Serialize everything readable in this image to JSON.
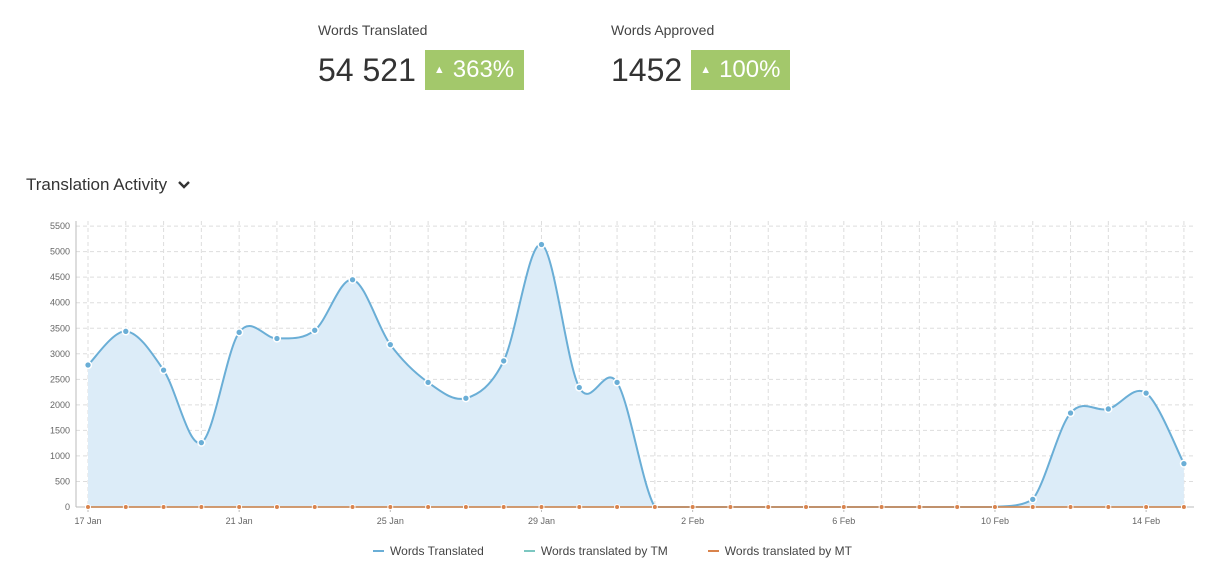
{
  "stats": [
    {
      "label": "Words Translated",
      "value": "54 521",
      "change": "363%"
    },
    {
      "label": "Words Approved",
      "value": "1452",
      "change": "100%"
    }
  ],
  "section": {
    "title": "Translation Activity",
    "icon": "chevron-down-icon"
  },
  "colors": {
    "translated": "#6aaed6",
    "tm": "#7cc7c1",
    "mt": "#d9834c",
    "badge": "#a3c86b",
    "area": "#dcecf8"
  },
  "chart_data": {
    "type": "area",
    "x_tick_labels": [
      "17 Jan",
      "21 Jan",
      "25 Jan",
      "29 Jan",
      "2 Feb",
      "6 Feb",
      "10 Feb",
      "14 Feb"
    ],
    "y_ticks": [
      0,
      500,
      1000,
      1500,
      2000,
      2500,
      3000,
      3500,
      4000,
      4500,
      5000,
      5500
    ],
    "ylim": [
      0,
      5600
    ],
    "grid": true,
    "legend_position": "bottom",
    "x": [
      "17 Jan",
      "18 Jan",
      "19 Jan",
      "20 Jan",
      "21 Jan",
      "22 Jan",
      "23 Jan",
      "24 Jan",
      "25 Jan",
      "26 Jan",
      "27 Jan",
      "28 Jan",
      "29 Jan",
      "30 Jan",
      "31 Jan",
      "1 Feb",
      "2 Feb",
      "3 Feb",
      "4 Feb",
      "5 Feb",
      "6 Feb",
      "7 Feb",
      "8 Feb",
      "9 Feb",
      "10 Feb",
      "11 Feb",
      "12 Feb",
      "13 Feb",
      "14 Feb",
      "15 Feb"
    ],
    "series": [
      {
        "name": "Words Translated",
        "values": [
          2780,
          3440,
          2680,
          1260,
          3420,
          3300,
          3460,
          4450,
          3180,
          2440,
          2130,
          2860,
          5140,
          2340,
          2440,
          0,
          0,
          0,
          0,
          0,
          0,
          0,
          0,
          0,
          0,
          150,
          1840,
          1920,
          2230,
          850
        ]
      },
      {
        "name": "Words translated by TM",
        "values": [
          0,
          0,
          0,
          0,
          0,
          0,
          0,
          0,
          0,
          0,
          0,
          0,
          0,
          0,
          0,
          0,
          0,
          0,
          0,
          0,
          0,
          0,
          0,
          0,
          0,
          0,
          0,
          0,
          0,
          0
        ]
      },
      {
        "name": "Words translated by MT",
        "values": [
          0,
          0,
          0,
          0,
          0,
          0,
          0,
          0,
          0,
          0,
          0,
          0,
          0,
          0,
          0,
          0,
          0,
          0,
          0,
          0,
          0,
          0,
          0,
          0,
          0,
          0,
          0,
          0,
          0,
          0
        ]
      }
    ]
  }
}
